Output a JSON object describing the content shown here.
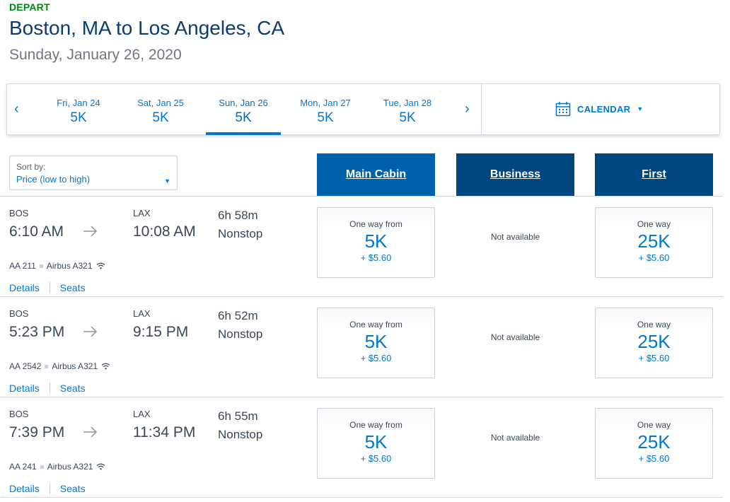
{
  "header": {
    "depart_label": "DEPART",
    "route": "Boston, MA to Los Angeles, CA",
    "date": "Sunday, January 26, 2020"
  },
  "date_strip": {
    "prev_arrow": "‹",
    "next_arrow": "›",
    "dates": [
      {
        "label": "Fri, Jan 24",
        "price": "5K"
      },
      {
        "label": "Sat, Jan 25",
        "price": "5K"
      },
      {
        "label": "Sun, Jan 26",
        "price": "5K"
      },
      {
        "label": "Mon, Jan 27",
        "price": "5K"
      },
      {
        "label": "Tue, Jan 28",
        "price": "5K"
      }
    ],
    "selected_index": 2,
    "calendar_label": "CALENDAR",
    "calendar_icon": "calendar-icon"
  },
  "sort": {
    "label": "Sort by:",
    "value": "Price (low to high)"
  },
  "cabins": {
    "main": "Main Cabin",
    "business": "Business",
    "first": "First"
  },
  "flights": [
    {
      "origin": "BOS",
      "depart_time": "6:10 AM",
      "destination": "LAX",
      "arrive_time": "10:08 AM",
      "duration": "6h 58m",
      "stops": "Nonstop",
      "flight_number": "AA 211",
      "aircraft": "Airbus A321",
      "details_link": "Details",
      "seats_link": "Seats",
      "main": {
        "label": "One way from",
        "miles": "5K",
        "fee": "+ $5.60"
      },
      "business": "Not available",
      "first": {
        "label": "One way",
        "miles": "25K",
        "fee": "+ $5.60"
      }
    },
    {
      "origin": "BOS",
      "depart_time": "5:23 PM",
      "destination": "LAX",
      "arrive_time": "9:15 PM",
      "duration": "6h 52m",
      "stops": "Nonstop",
      "flight_number": "AA 2542",
      "aircraft": "Airbus A321",
      "details_link": "Details",
      "seats_link": "Seats",
      "main": {
        "label": "One way from",
        "miles": "5K",
        "fee": "+ $5.60"
      },
      "business": "Not available",
      "first": {
        "label": "One way",
        "miles": "25K",
        "fee": "+ $5.60"
      }
    },
    {
      "origin": "BOS",
      "depart_time": "7:39 PM",
      "destination": "LAX",
      "arrive_time": "11:34 PM",
      "duration": "6h 55m",
      "stops": "Nonstop",
      "flight_number": "AA 241",
      "aircraft": "Airbus A321",
      "details_link": "Details",
      "seats_link": "Seats",
      "main": {
        "label": "One way from",
        "miles": "5K",
        "fee": "+ $5.60"
      },
      "business": "Not available",
      "first": {
        "label": "One way",
        "miles": "25K",
        "fee": "+ $5.60"
      }
    }
  ],
  "colors": {
    "accent": "#0078d2",
    "title": "#0b3c6e",
    "depart_green": "#008712",
    "main_cabin_bg": "#0061ab",
    "other_cabin_bg": "#00467f"
  }
}
